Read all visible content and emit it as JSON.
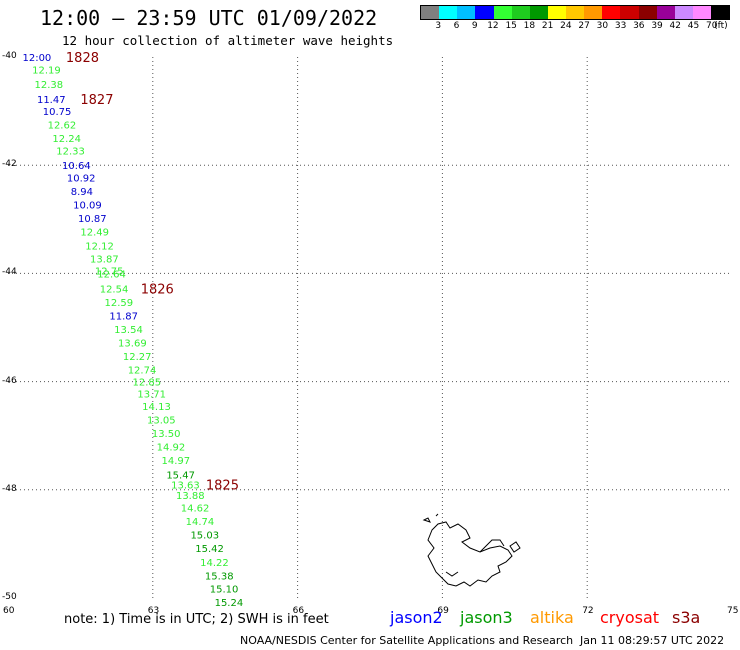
{
  "header": {
    "title": "12:00 – 23:59 UTC 01/09/2022",
    "subtitle": "12 hour collection of altimeter wave heights"
  },
  "legend": {
    "swatches": [
      "#7f7f7f",
      "#00ffff",
      "#00bfff",
      "#0000ff",
      "#33ff33",
      "#1fcc1f",
      "#009900",
      "#ffff00",
      "#ffc800",
      "#ff9900",
      "#ff0000",
      "#cc0000",
      "#8b0000",
      "#990099",
      "#cc88ff",
      "#ff88ff",
      "#000000"
    ],
    "labels": [
      "3",
      "6",
      "9",
      "12",
      "15",
      "18",
      "21",
      "24",
      "27",
      "30",
      "33",
      "36",
      "39",
      "42",
      "45",
      "70",
      "(ft)"
    ]
  },
  "map": {
    "lat_labels": [
      "-40",
      "-42",
      "-44",
      "-46",
      "-48",
      "-50"
    ],
    "lon_labels": [
      "60",
      "63",
      "66",
      "69",
      "72",
      "75"
    ],
    "observations": [
      {
        "text": "12:00",
        "lon": 60.3,
        "lat": -40.0,
        "color": "#0000cc"
      },
      {
        "text": "12.19",
        "lon": 60.5,
        "lat": -40.23,
        "color": "#33ee33"
      },
      {
        "text": "12.38",
        "lon": 60.55,
        "lat": -40.5,
        "color": "#33ee33"
      },
      {
        "text": "11.47",
        "lon": 60.6,
        "lat": -40.78,
        "color": "#0000cc"
      },
      {
        "text": "10.75",
        "lon": 60.72,
        "lat": -41.0,
        "color": "#0000cc"
      },
      {
        "text": "12.62",
        "lon": 60.82,
        "lat": -41.25,
        "color": "#33ee33"
      },
      {
        "text": "12.24",
        "lon": 60.92,
        "lat": -41.5,
        "color": "#33ee33"
      },
      {
        "text": "12.33",
        "lon": 61.0,
        "lat": -41.73,
        "color": "#33ee33"
      },
      {
        "text": "10.64",
        "lon": 61.12,
        "lat": -42.0,
        "color": "#0000cc"
      },
      {
        "text": "10.92",
        "lon": 61.22,
        "lat": -42.23,
        "color": "#0000cc"
      },
      {
        "text": "8.94",
        "lon": 61.3,
        "lat": -42.48,
        "color": "#0000cc"
      },
      {
        "text": "10.09",
        "lon": 61.35,
        "lat": -42.73,
        "color": "#0000cc"
      },
      {
        "text": "10.87",
        "lon": 61.45,
        "lat": -42.98,
        "color": "#0000cc"
      },
      {
        "text": "12.49",
        "lon": 61.5,
        "lat": -43.23,
        "color": "#33ee33"
      },
      {
        "text": "12.12",
        "lon": 61.6,
        "lat": -43.48,
        "color": "#33ee33"
      },
      {
        "text": "13.87",
        "lon": 61.7,
        "lat": -43.72,
        "color": "#33ee33"
      },
      {
        "text": "12.75",
        "lon": 61.8,
        "lat": -43.95,
        "color": "#33ee33"
      },
      {
        "text": "12.64",
        "lon": 61.85,
        "lat": -44.0,
        "color": "#33ee33"
      },
      {
        "text": "12.54",
        "lon": 61.9,
        "lat": -44.28,
        "color": "#33ee33"
      },
      {
        "text": "12.59",
        "lon": 62.0,
        "lat": -44.53,
        "color": "#33ee33"
      },
      {
        "text": "11.87",
        "lon": 62.1,
        "lat": -44.78,
        "color": "#0000cc"
      },
      {
        "text": "13.54",
        "lon": 62.2,
        "lat": -45.03,
        "color": "#33ee33"
      },
      {
        "text": "13.69",
        "lon": 62.28,
        "lat": -45.28,
        "color": "#33ee33"
      },
      {
        "text": "12.27",
        "lon": 62.38,
        "lat": -45.53,
        "color": "#33ee33"
      },
      {
        "text": "12.74",
        "lon": 62.48,
        "lat": -45.78,
        "color": "#33ee33"
      },
      {
        "text": "12.85",
        "lon": 62.58,
        "lat": -46.0,
        "color": "#33ee33"
      },
      {
        "text": "13.71",
        "lon": 62.68,
        "lat": -46.22,
        "color": "#33ee33"
      },
      {
        "text": "14.13",
        "lon": 62.78,
        "lat": -46.45,
        "color": "#33ee33"
      },
      {
        "text": "13.05",
        "lon": 62.88,
        "lat": -46.7,
        "color": "#33ee33"
      },
      {
        "text": "13.50",
        "lon": 62.98,
        "lat": -46.95,
        "color": "#33ee33"
      },
      {
        "text": "14.92",
        "lon": 63.08,
        "lat": -47.2,
        "color": "#33ee33"
      },
      {
        "text": "14.97",
        "lon": 63.18,
        "lat": -47.45,
        "color": "#33ee33"
      },
      {
        "text": "15.47",
        "lon": 63.28,
        "lat": -47.72,
        "color": "#009900"
      },
      {
        "text": "13.63",
        "lon": 63.38,
        "lat": -47.9,
        "color": "#33ee33"
      },
      {
        "text": "13.88",
        "lon": 63.48,
        "lat": -48.1,
        "color": "#33ee33"
      },
      {
        "text": "14.62",
        "lon": 63.58,
        "lat": -48.33,
        "color": "#33ee33"
      },
      {
        "text": "14.74",
        "lon": 63.68,
        "lat": -48.58,
        "color": "#33ee33"
      },
      {
        "text": "15.03",
        "lon": 63.78,
        "lat": -48.83,
        "color": "#009900"
      },
      {
        "text": "15.42",
        "lon": 63.88,
        "lat": -49.08,
        "color": "#009900"
      },
      {
        "text": "14.22",
        "lon": 63.98,
        "lat": -49.33,
        "color": "#33ee33"
      },
      {
        "text": "15.38",
        "lon": 64.08,
        "lat": -49.58,
        "color": "#009900"
      },
      {
        "text": "15.10",
        "lon": 64.18,
        "lat": -49.82,
        "color": "#009900"
      },
      {
        "text": "15.24",
        "lon": 64.28,
        "lat": -50.07,
        "color": "#009900"
      }
    ],
    "track_labels": [
      {
        "text": "1828",
        "lon": 61.2,
        "lat": -40.0,
        "color": "#8b0000"
      },
      {
        "text": "1827",
        "lon": 61.5,
        "lat": -40.78,
        "color": "#8b0000"
      },
      {
        "text": "1826",
        "lon": 62.75,
        "lat": -44.28,
        "color": "#8b0000"
      },
      {
        "text": "1825",
        "lon": 64.1,
        "lat": -47.9,
        "color": "#8b0000"
      }
    ]
  },
  "footer": {
    "note": "note: 1) Time is in UTC; 2) SWH is in feet",
    "satellites": [
      {
        "name": "jason2",
        "color": "#0000ff"
      },
      {
        "name": "jason3",
        "color": "#009900"
      },
      {
        "name": "altika",
        "color": "#ff9900"
      },
      {
        "name": "cryosat",
        "color": "#ff0000"
      },
      {
        "name": "s3a",
        "color": "#8b0000"
      }
    ],
    "credit": "NOAA/NESDIS Center for Satellite Applications and Research",
    "timestamp": "Jan 11 08:29:57 UTC 2022"
  }
}
